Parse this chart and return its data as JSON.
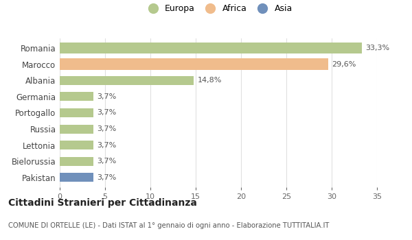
{
  "categories": [
    "Pakistan",
    "Bielorussia",
    "Lettonia",
    "Russia",
    "Portogallo",
    "Germania",
    "Albania",
    "Marocco",
    "Romania"
  ],
  "values": [
    3.7,
    3.7,
    3.7,
    3.7,
    3.7,
    3.7,
    14.8,
    29.6,
    33.3
  ],
  "colors": [
    "#7090bb",
    "#b5c98e",
    "#b5c98e",
    "#b5c98e",
    "#b5c98e",
    "#b5c98e",
    "#b5c98e",
    "#f0bc8c",
    "#b5c98e"
  ],
  "labels": [
    "3,7%",
    "3,7%",
    "3,7%",
    "3,7%",
    "3,7%",
    "3,7%",
    "14,8%",
    "29,6%",
    "33,3%"
  ],
  "legend": [
    {
      "label": "Europa",
      "color": "#b5c98e"
    },
    {
      "label": "Africa",
      "color": "#f0bc8c"
    },
    {
      "label": "Asia",
      "color": "#7090bb"
    }
  ],
  "xlim": [
    0,
    35
  ],
  "xticks": [
    0,
    5,
    10,
    15,
    20,
    25,
    30,
    35
  ],
  "title": "Cittadini Stranieri per Cittadinanza",
  "subtitle": "COMUNE DI ORTELLE (LE) - Dati ISTAT al 1° gennaio di ogni anno - Elaborazione TUTTITALIA.IT",
  "background_color": "#ffffff",
  "grid_color": "#e0e0e0",
  "bar_heights": [
    0.55,
    0.55,
    0.55,
    0.55,
    0.55,
    0.55,
    0.55,
    0.7,
    0.7
  ]
}
